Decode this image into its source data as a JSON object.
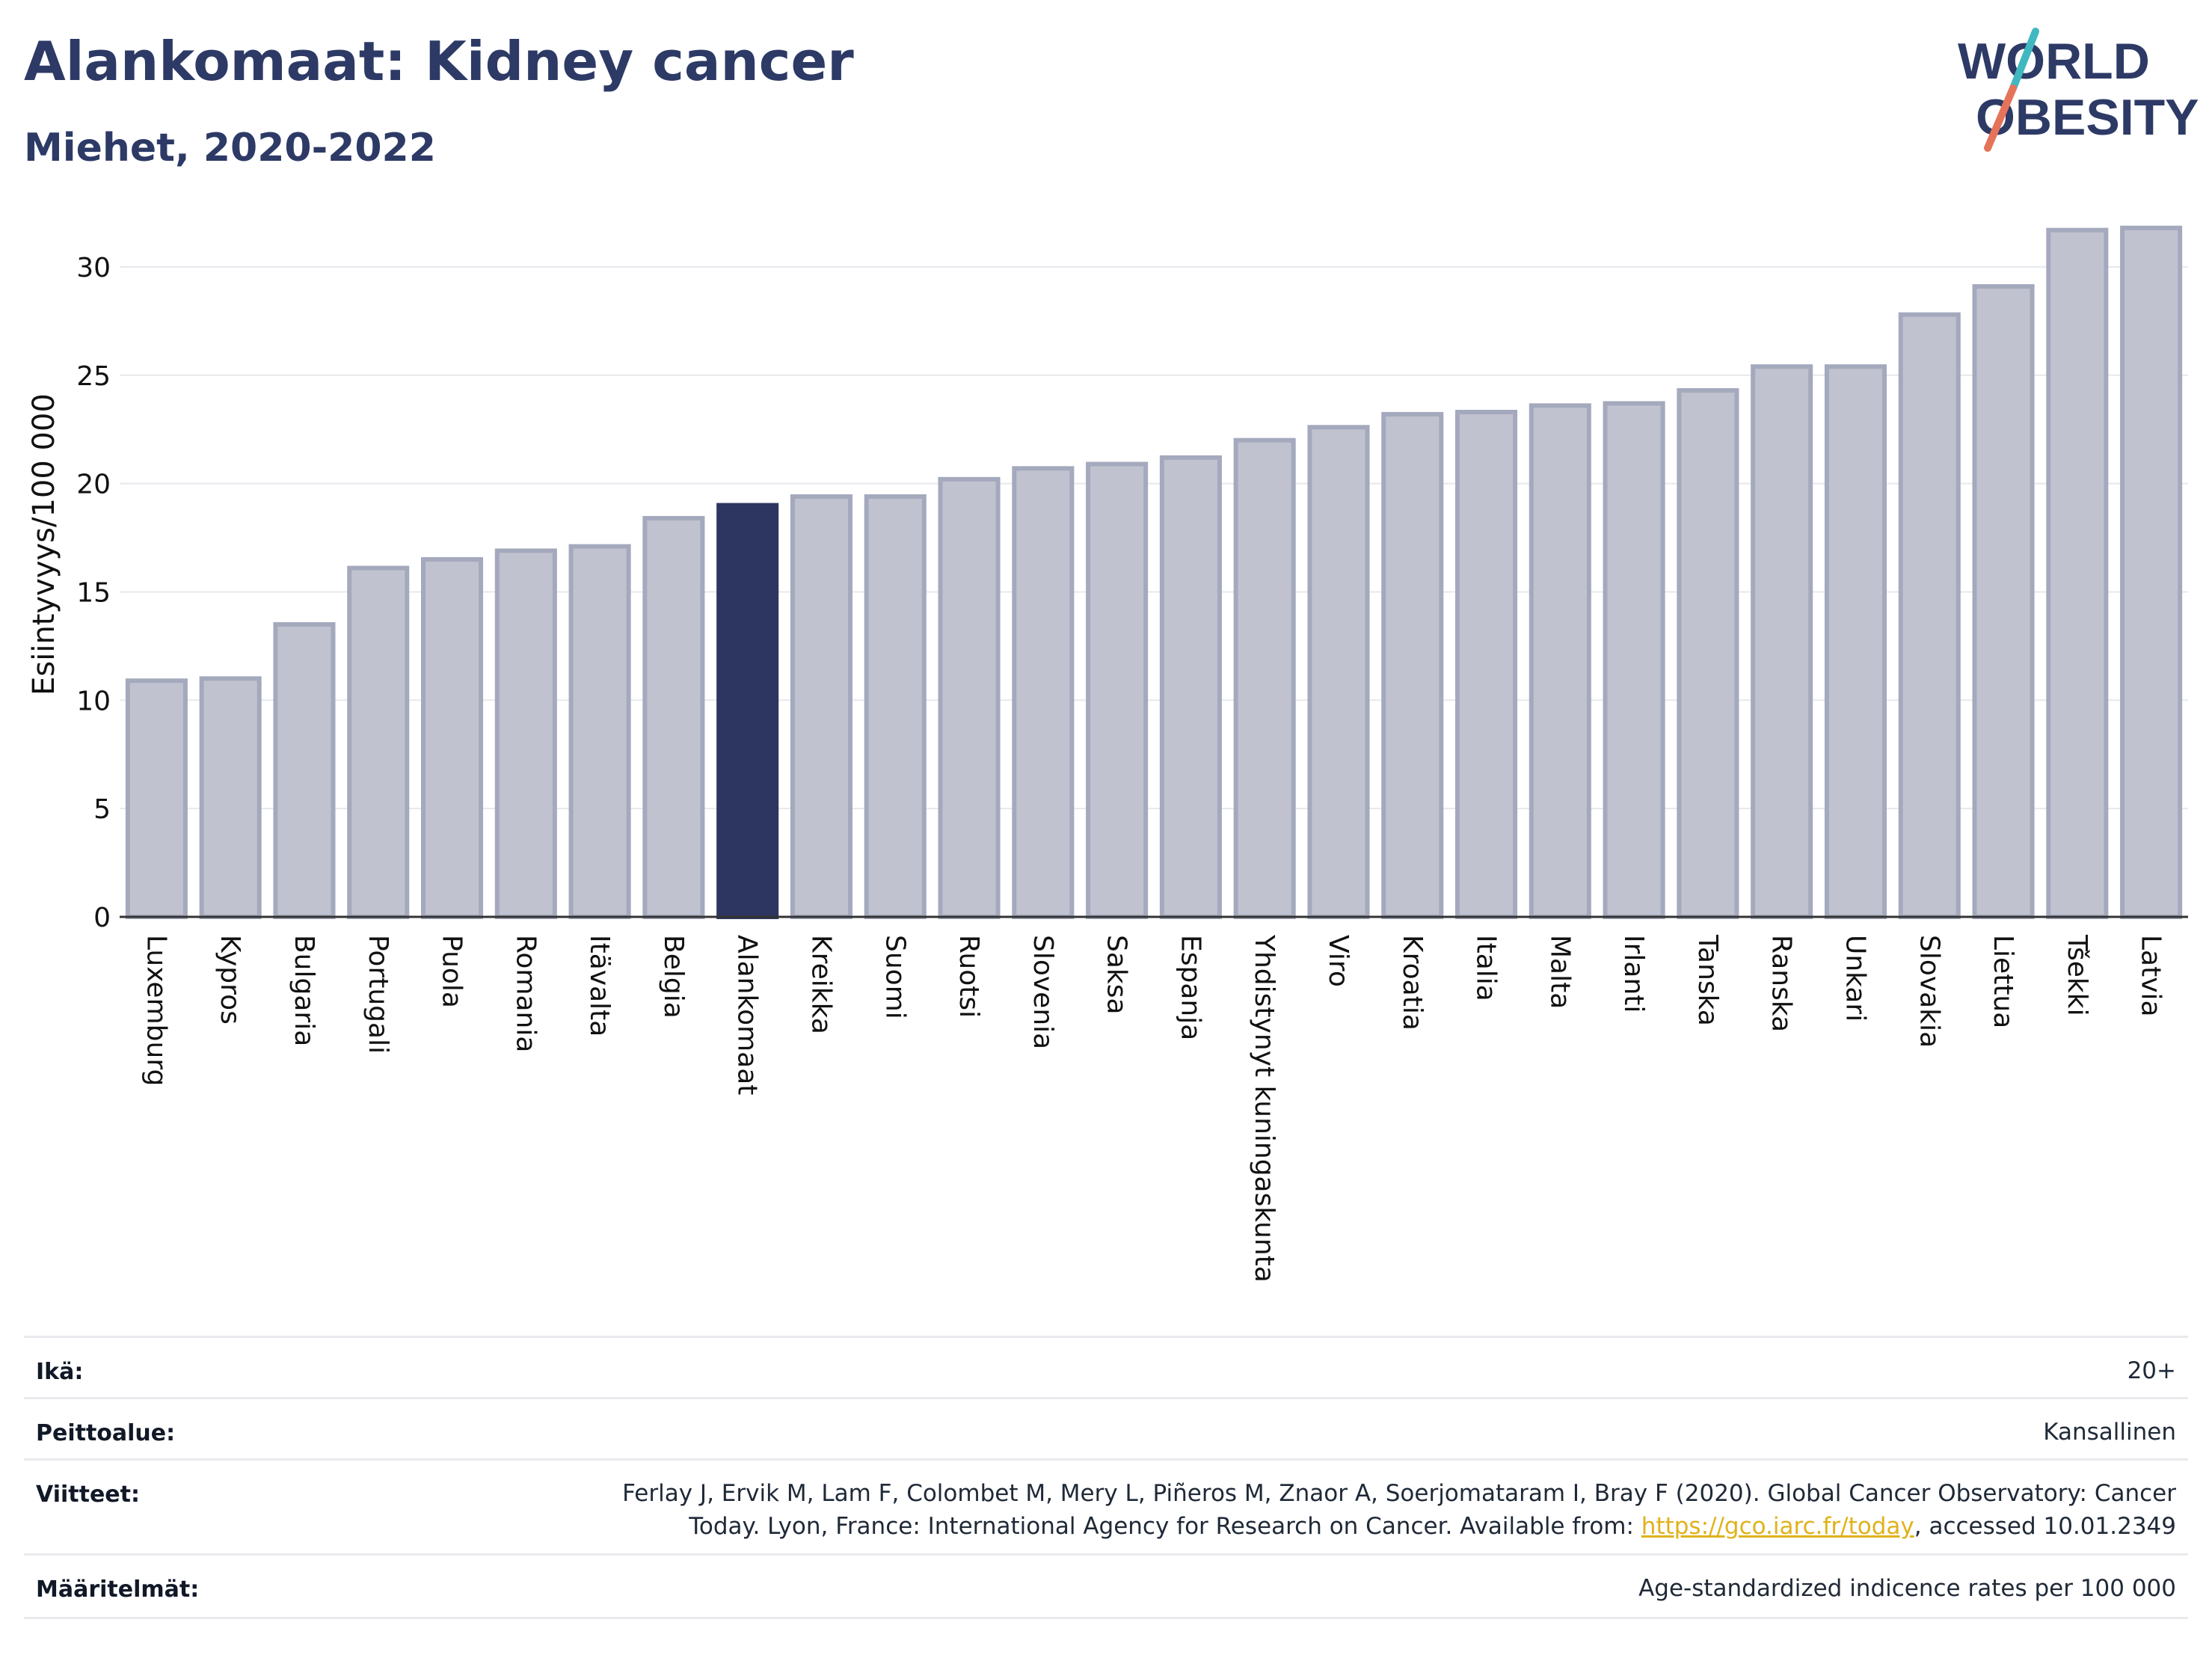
{
  "header": {
    "title": "Alankomaat: Kidney cancer",
    "subtitle": "Miehet, 2020-2022"
  },
  "logo": {
    "line1": "WORLD",
    "line2": "OBESITY",
    "accent_teal": "#3fb8c0",
    "accent_red": "#e5735a",
    "text_color": "#2d3a66"
  },
  "colors": {
    "highlight": "#2d3661",
    "bar_fill": "#c0c3cf",
    "bar_stroke": "#a4a9bd",
    "grid": "#e6e8ec"
  },
  "chart_data": {
    "type": "bar",
    "title": "Alankomaat: Kidney cancer",
    "subtitle": "Miehet, 2020-2022",
    "ylabel": "Esiintyvyys/100 000",
    "xlabel": "",
    "ylim": [
      0,
      33
    ],
    "yticks": [
      0,
      5,
      10,
      15,
      20,
      25,
      30
    ],
    "grid": true,
    "highlight": "Alankomaat",
    "categories": [
      "Luxemburg",
      "Kypros",
      "Bulgaria",
      "Portugali",
      "Puola",
      "Romania",
      "Itävalta",
      "Belgia",
      "Alankomaat",
      "Kreikka",
      "Suomi",
      "Ruotsi",
      "Slovenia",
      "Saksa",
      "Espanja",
      "Yhdistynyt kuningaskunta",
      "Viro",
      "Kroatia",
      "Italia",
      "Malta",
      "Irlanti",
      "Tanska",
      "Ranska",
      "Unkari",
      "Slovakia",
      "Liettua",
      "Tšekki",
      "Latvia"
    ],
    "values": [
      10.9,
      11.0,
      13.5,
      16.1,
      16.5,
      16.9,
      17.1,
      18.4,
      19.0,
      19.4,
      19.4,
      20.2,
      20.7,
      20.9,
      21.2,
      22.0,
      22.6,
      23.2,
      23.3,
      23.6,
      23.7,
      24.3,
      25.4,
      25.4,
      27.8,
      29.1,
      31.7,
      31.8
    ]
  },
  "info": {
    "age_label": "Ikä:",
    "age_value": "20+",
    "coverage_label": "Peittoalue:",
    "coverage_value": "Kansallinen",
    "refs_label": "Viitteet:",
    "refs_line1": "Ferlay J, Ervik M, Lam F, Colombet M, Mery L, Piñeros M, Znaor A, Soerjomataram I, Bray F (2020). Global Cancer Observatory: Cancer",
    "refs_line2_pre": "Today. Lyon, France: International Agency for Research on Cancer. Available from: ",
    "refs_link": "https://gco.iarc.fr/today",
    "refs_line2_post": ", accessed 10.01.2349",
    "defs_label": "Määritelmät:",
    "defs_value": "Age-standardized indicence rates per 100 000"
  }
}
